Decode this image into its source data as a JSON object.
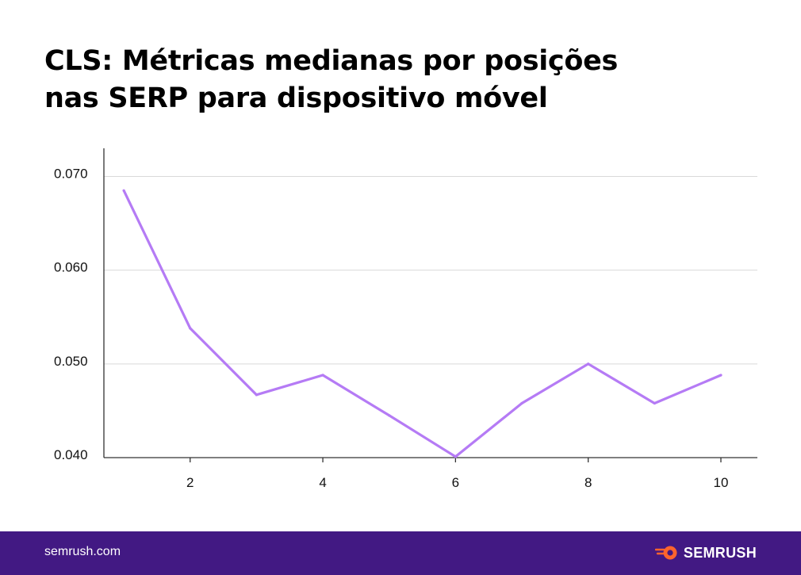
{
  "title": {
    "line1": "CLS: Métricas medianas por posições",
    "line2": "nas SERP para dispositivo móvel"
  },
  "chart_data": {
    "type": "line",
    "title": "CLS: Métricas medianas por posições nas SERP para dispositivo móvel",
    "xlabel": "",
    "ylabel": "",
    "x": [
      1,
      2,
      3,
      4,
      5,
      6,
      7,
      8,
      9,
      10
    ],
    "x_ticks": [
      2,
      4,
      6,
      8,
      10
    ],
    "x_tick_labels": [
      "2",
      "4",
      "6",
      "8",
      "10"
    ],
    "xlim": [
      0.7,
      10.55
    ],
    "y_ticks": [
      0.04,
      0.05,
      0.06,
      0.07
    ],
    "y_tick_labels": [
      "0.040",
      "0.050",
      "0.060",
      "0.070"
    ],
    "ylim": [
      0.04,
      0.073
    ],
    "grid": "horizontal",
    "series": [
      {
        "name": "CLS",
        "color": "#B57BF5",
        "values": [
          0.0685,
          0.0538,
          0.0467,
          0.0488,
          0.0445,
          0.0401,
          0.0458,
          0.05,
          0.0458,
          0.0488
        ]
      }
    ]
  },
  "footer": {
    "url": "semrush.com",
    "brand": "SEMRUSH",
    "brand_icon": "semrush-fireball-icon",
    "background": "#421983",
    "accent": "#FF642D"
  }
}
